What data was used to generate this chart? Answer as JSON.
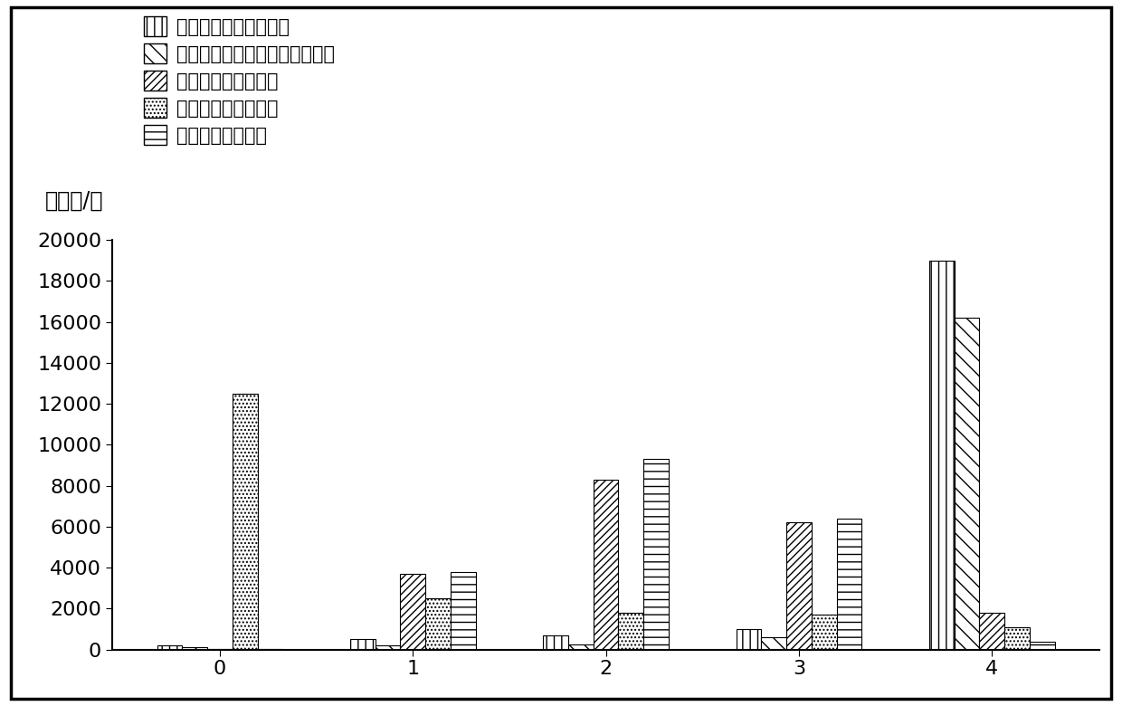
{
  "categories": [
    "0",
    "1",
    "2",
    "3",
    "4"
  ],
  "series_names": [
    "理论最优功率分配方式",
    "基于路径损耗部分补偿分配方式",
    "等功率发射分配方式",
    "等功率接受分配方式",
    "随机功率分配方式"
  ],
  "series_values": [
    [
      200,
      500,
      700,
      1000,
      19000
    ],
    [
      100,
      200,
      250,
      600,
      16200
    ],
    [
      30,
      3700,
      8300,
      6200,
      1800
    ],
    [
      12500,
      2500,
      1800,
      1700,
      1100
    ],
    [
      30,
      3800,
      9300,
      6400,
      400
    ]
  ],
  "hatches": [
    "||",
    "\\\\",
    "////",
    "....",
    "--"
  ],
  "legend_hatches": [
    "||",
    "\\\\",
    "////",
    "....",
    "--"
  ],
  "ylabel": "样本数/个",
  "ylim": [
    0,
    20000
  ],
  "yticks": [
    0,
    2000,
    4000,
    6000,
    8000,
    10000,
    12000,
    14000,
    16000,
    18000,
    20000
  ],
  "bar_width": 0.13,
  "ylabel_fontsize": 17,
  "tick_fontsize": 16,
  "legend_fontsize": 15
}
